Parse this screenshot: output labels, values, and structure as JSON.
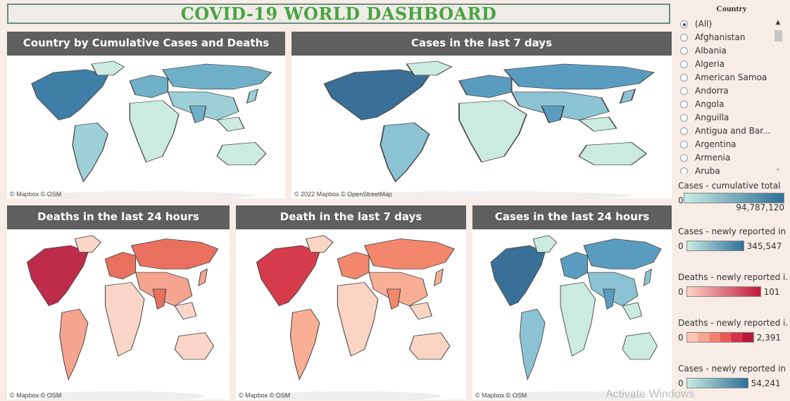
{
  "title": "COVID-19 WORLD  DASHBOARD",
  "panels": [
    {
      "id": "cumulative",
      "title": "Country by Cumulative Cases and Deaths",
      "attribution": "© Mapbox © OSM",
      "palette": "blue-light"
    },
    {
      "id": "cases7",
      "title": "Cases in the last 7 days",
      "attribution": "© 2022 Mapbox © OpenStreetMap",
      "palette": "blue"
    },
    {
      "id": "deaths24",
      "title": "Deaths in the last 24 hours",
      "attribution": "© Mapbox © OSM",
      "palette": "red"
    },
    {
      "id": "deaths7",
      "title": "Death in the last 7 days",
      "attribution": "© Mapbox © OSM",
      "palette": "salmon"
    },
    {
      "id": "cases24",
      "title": "Cases in the last 24 hours",
      "attribution": "© Mapbox © OSM",
      "palette": "blue"
    }
  ],
  "filter": {
    "header": "Country",
    "items": [
      "(All)",
      "Afghanistan",
      "Albania",
      "Algeria",
      "American Samoa",
      "Andorra",
      "Angola",
      "Anguilla",
      "Antigua and Bar...",
      "Argentina",
      "Armenia",
      "Aruba"
    ],
    "selected": "(All)"
  },
  "legends": [
    {
      "title": "Cases - cumulative total",
      "min": "0",
      "max": "94,787,120",
      "colors": [
        "#c8ebe2",
        "#2e6f99"
      ]
    },
    {
      "title": "Cases - newly reported in ..",
      "min": "0",
      "max": "345,547",
      "colors": [
        "#c8ebe2",
        "#2e6f99"
      ]
    },
    {
      "title": "Deaths - newly reported i..",
      "min": "0",
      "max": "101",
      "colors": [
        "#fdd5c6",
        "#c0183c"
      ]
    },
    {
      "title": "Deaths - newly reported i..",
      "min": "0",
      "max": "2,391",
      "colors": [
        "#fdc6b4",
        "#f7a58f",
        "#f3806d",
        "#e65a55",
        "#d43348",
        "#b81a3a"
      ]
    },
    {
      "title": "Cases - newly reported in ..",
      "min": "0",
      "max": "54,241",
      "colors": [
        "#c8ebe2",
        "#2e6f99"
      ]
    }
  ],
  "watermark": "Activate Windows"
}
